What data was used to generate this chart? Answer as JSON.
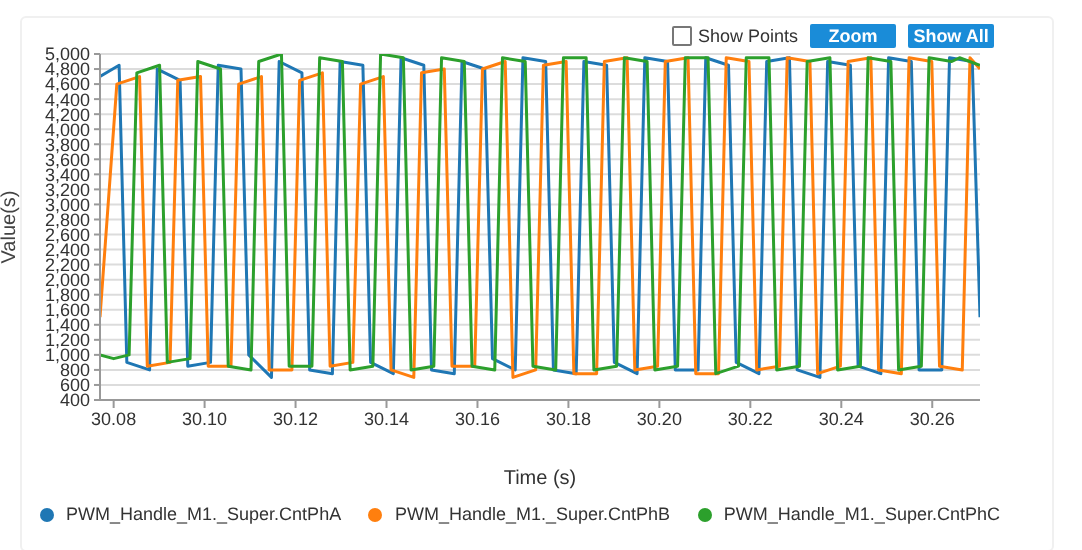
{
  "chart_data": {
    "type": "line",
    "xlabel": "Time (s)",
    "ylabel": "Value(s)",
    "xlim": [
      30.077,
      30.2705
    ],
    "ylim": [
      400,
      5000
    ],
    "xticks": [
      {
        "value": 30.08,
        "label": "30.08"
      },
      {
        "value": 30.1,
        "label": "30.10"
      },
      {
        "value": 30.12,
        "label": "30.12"
      },
      {
        "value": 30.14,
        "label": "30.14"
      },
      {
        "value": 30.16,
        "label": "30.16"
      },
      {
        "value": 30.18,
        "label": "30.18"
      },
      {
        "value": 30.2,
        "label": "30.20"
      },
      {
        "value": 30.22,
        "label": "30.22"
      },
      {
        "value": 30.24,
        "label": "30.24"
      },
      {
        "value": 30.26,
        "label": "30.26"
      }
    ],
    "yticks": [
      {
        "value": 400,
        "label": "400"
      },
      {
        "value": 600,
        "label": "600"
      },
      {
        "value": 800,
        "label": "800"
      },
      {
        "value": 1000,
        "label": "1,000"
      },
      {
        "value": 1200,
        "label": "1,200"
      },
      {
        "value": 1400,
        "label": "1,400"
      },
      {
        "value": 1600,
        "label": "1,600"
      },
      {
        "value": 1800,
        "label": "1,800"
      },
      {
        "value": 2000,
        "label": "2,000"
      },
      {
        "value": 2200,
        "label": "2,200"
      },
      {
        "value": 2400,
        "label": "2,400"
      },
      {
        "value": 2600,
        "label": "2,600"
      },
      {
        "value": 2800,
        "label": "2,800"
      },
      {
        "value": 3000,
        "label": "3,000"
      },
      {
        "value": 3200,
        "label": "3,200"
      },
      {
        "value": 3400,
        "label": "3,400"
      },
      {
        "value": 3600,
        "label": "3,600"
      },
      {
        "value": 3800,
        "label": "3,800"
      },
      {
        "value": 4000,
        "label": "4,000"
      },
      {
        "value": 4200,
        "label": "4,200"
      },
      {
        "value": 4400,
        "label": "4,400"
      },
      {
        "value": 4600,
        "label": "4,600"
      },
      {
        "value": 4800,
        "label": "4,800"
      },
      {
        "value": 5000,
        "label": "5,000"
      }
    ],
    "grid": "y",
    "legend": "bottom",
    "marker": "none",
    "line_style": "solid",
    "annotations": [
      "Show Points",
      "Zoom",
      "Show All"
    ],
    "series": [
      {
        "name": "PWM_Handle_M1._Super.CntPhA",
        "color": "#1f77b4",
        "x": [
          30.077,
          30.0812,
          30.0829,
          30.0879,
          30.0896,
          30.0946,
          30.0963,
          30.1013,
          30.103,
          30.108,
          30.1097,
          30.1147,
          30.1164,
          30.1214,
          30.1231,
          30.1281,
          30.1298,
          30.1348,
          30.1365,
          30.1415,
          30.1432,
          30.1482,
          30.1499,
          30.1549,
          30.1566,
          30.1616,
          30.1633,
          30.1683,
          30.17,
          30.175,
          30.1767,
          30.1817,
          30.1834,
          30.1884,
          30.1901,
          30.1951,
          30.1968,
          30.2018,
          30.2035,
          30.2085,
          30.2102,
          30.2152,
          30.2169,
          30.2219,
          30.2236,
          30.2286,
          30.2303,
          30.2353,
          30.237,
          30.242,
          30.2437,
          30.2487,
          30.2504,
          30.2554,
          30.2571,
          30.2621,
          30.2638,
          30.2688,
          30.2705
        ],
        "values": [
          4700,
          4850,
          900,
          800,
          4800,
          4650,
          850,
          900,
          4850,
          4800,
          1000,
          700,
          4900,
          4750,
          800,
          750,
          4900,
          4850,
          900,
          750,
          4950,
          4850,
          800,
          750,
          4900,
          4800,
          950,
          800,
          4950,
          4900,
          800,
          750,
          4900,
          4850,
          900,
          750,
          4950,
          4900,
          800,
          800,
          4950,
          4850,
          900,
          750,
          4900,
          4950,
          800,
          700,
          4900,
          4850,
          850,
          750,
          4950,
          4900,
          800,
          800,
          4950,
          4900,
          1500
        ]
      },
      {
        "name": "PWM_Handle_M1._Super.CntPhB",
        "color": "#ff7f0e",
        "x": [
          30.077,
          30.0807,
          30.0857,
          30.0874,
          30.0924,
          30.0941,
          30.0991,
          30.1008,
          30.1058,
          30.1075,
          30.1125,
          30.1142,
          30.1192,
          30.1209,
          30.1259,
          30.1276,
          30.1326,
          30.1343,
          30.1393,
          30.141,
          30.146,
          30.1477,
          30.1527,
          30.1544,
          30.1594,
          30.1611,
          30.1661,
          30.1678,
          30.1728,
          30.1745,
          30.1795,
          30.1812,
          30.1862,
          30.1879,
          30.1929,
          30.1946,
          30.1996,
          30.2013,
          30.2063,
          30.208,
          30.213,
          30.2147,
          30.2197,
          30.2214,
          30.2264,
          30.2281,
          30.2331,
          30.2348,
          30.2398,
          30.2415,
          30.2465,
          30.2482,
          30.2532,
          30.2549,
          30.2599,
          30.2616,
          30.2666,
          30.2683,
          30.2705
        ],
        "values": [
          1500,
          4600,
          4700,
          850,
          900,
          4650,
          4700,
          850,
          850,
          4600,
          4700,
          800,
          800,
          4650,
          4750,
          850,
          900,
          4600,
          4700,
          800,
          700,
          4750,
          4800,
          850,
          850,
          4800,
          4900,
          700,
          800,
          4850,
          4900,
          750,
          750,
          4900,
          4950,
          800,
          850,
          4900,
          4950,
          750,
          750,
          4950,
          4900,
          800,
          850,
          4950,
          4900,
          750,
          850,
          4900,
          4950,
          800,
          750,
          4950,
          4900,
          850,
          800,
          4950,
          4800
        ]
      },
      {
        "name": "PWM_Handle_M1._Super.CntPhC",
        "color": "#2ca02c",
        "x": [
          30.077,
          30.08,
          30.0834,
          30.0851,
          30.0901,
          30.0918,
          30.0968,
          30.0985,
          30.1035,
          30.1052,
          30.1102,
          30.1119,
          30.1169,
          30.1186,
          30.1236,
          30.1253,
          30.1303,
          30.132,
          30.137,
          30.1387,
          30.1437,
          30.1454,
          30.1504,
          30.1521,
          30.1571,
          30.1588,
          30.1638,
          30.1655,
          30.1705,
          30.1722,
          30.1772,
          30.1789,
          30.1839,
          30.1856,
          30.1906,
          30.1923,
          30.1973,
          30.199,
          30.204,
          30.2057,
          30.2107,
          30.2124,
          30.2174,
          30.2191,
          30.2241,
          30.2258,
          30.2308,
          30.2325,
          30.2375,
          30.2392,
          30.2442,
          30.2459,
          30.2509,
          30.2526,
          30.2576,
          30.2593,
          30.2643,
          30.266,
          30.2705
        ],
        "values": [
          1000,
          950,
          1000,
          4750,
          4850,
          900,
          950,
          4900,
          4800,
          850,
          800,
          4900,
          5000,
          850,
          850,
          4950,
          4900,
          800,
          850,
          5000,
          4950,
          800,
          850,
          4950,
          4900,
          850,
          800,
          4950,
          4900,
          850,
          800,
          4950,
          4950,
          800,
          850,
          4950,
          4900,
          800,
          850,
          4950,
          4950,
          750,
          850,
          4950,
          4950,
          800,
          850,
          4900,
          4950,
          800,
          850,
          4950,
          4900,
          800,
          850,
          4950,
          4900,
          4950,
          4850
        ]
      }
    ]
  }
}
